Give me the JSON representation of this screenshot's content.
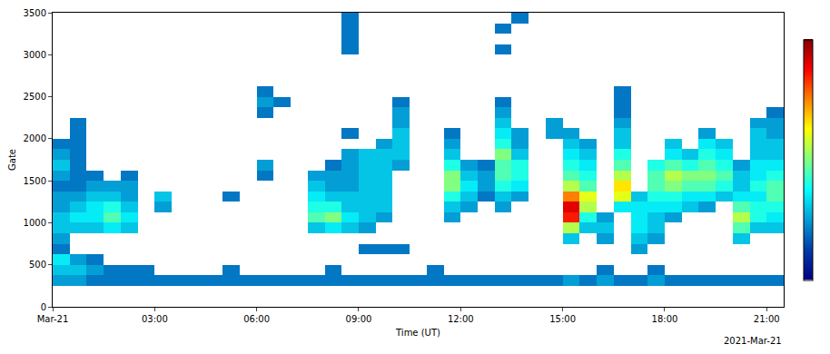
{
  "chart_data": {
    "type": "heatmap",
    "x_label": "Time (UT)",
    "y_label": "Gate",
    "annotations": [
      {
        "text": "2021-Mar-21"
      }
    ],
    "grid": false,
    "xlim": [
      0,
      21.5
    ],
    "xticks": [
      {
        "value": 0,
        "label": "Mar-21"
      },
      {
        "value": 3,
        "label": "03:00"
      },
      {
        "value": 6,
        "label": "06:00"
      },
      {
        "value": 9,
        "label": "09:00"
      },
      {
        "value": 12,
        "label": "12:00"
      },
      {
        "value": 15,
        "label": "15:00"
      },
      {
        "value": 18,
        "label": "18:00"
      },
      {
        "value": 21,
        "label": "21:00"
      }
    ],
    "ylim": [
      0,
      3500
    ],
    "yticks": [
      0,
      500,
      1000,
      1500,
      2000,
      2500,
      3000,
      3500
    ],
    "zlim": [
      0,
      100
    ],
    "x": [
      0,
      0.5,
      1,
      1.5,
      2,
      2.5,
      3,
      3.5,
      4,
      4.5,
      5,
      5.5,
      6,
      6.5,
      7,
      7.5,
      8,
      8.5,
      9,
      9.5,
      10,
      10.5,
      11,
      11.5,
      12,
      12.5,
      13,
      13.5,
      14,
      14.5,
      15,
      15.5,
      16,
      16.5,
      17,
      17.5,
      18,
      18.5,
      19,
      19.5,
      20,
      20.5,
      21,
      21.5
    ],
    "y": [
      0,
      125,
      250,
      375,
      500,
      625,
      750,
      875,
      1000,
      1125,
      1250,
      1375,
      1500,
      1625,
      1750,
      1875,
      2000,
      2125,
      2250,
      2375,
      2500,
      2625,
      2750,
      2875,
      3000,
      3125,
      3250,
      3375,
      3500
    ],
    "values": [
      [
        null,
        null,
        null,
        null,
        null,
        null,
        null,
        null,
        null,
        null,
        null,
        null,
        null,
        null,
        null,
        null,
        null,
        null,
        null,
        null,
        null,
        null,
        null,
        null,
        null,
        null,
        null,
        null,
        null,
        null,
        null,
        null,
        null,
        null,
        null,
        null,
        null,
        null,
        null,
        null,
        null,
        null,
        null
      ],
      [
        null,
        null,
        null,
        null,
        null,
        null,
        null,
        null,
        null,
        null,
        null,
        null,
        null,
        null,
        null,
        null,
        null,
        null,
        null,
        null,
        null,
        null,
        null,
        null,
        null,
        null,
        null,
        null,
        null,
        null,
        null,
        null,
        null,
        null,
        null,
        null,
        null,
        null,
        null,
        null,
        null,
        null,
        null
      ],
      [
        25,
        25,
        20,
        20,
        20,
        20,
        20,
        20,
        20,
        20,
        20,
        20,
        20,
        20,
        20,
        20,
        20,
        20,
        20,
        20,
        20,
        20,
        20,
        20,
        20,
        20,
        20,
        20,
        20,
        20,
        25,
        20,
        25,
        20,
        20,
        25,
        20,
        20,
        20,
        20,
        20,
        20,
        20
      ],
      [
        30,
        30,
        25,
        20,
        20,
        20,
        null,
        null,
        null,
        null,
        20,
        null,
        null,
        null,
        null,
        null,
        20,
        null,
        null,
        null,
        null,
        null,
        20,
        null,
        null,
        null,
        null,
        null,
        null,
        null,
        null,
        null,
        20,
        null,
        null,
        20,
        null,
        null,
        null,
        null,
        null,
        null,
        null
      ],
      [
        35,
        25,
        20,
        null,
        null,
        null,
        null,
        null,
        null,
        null,
        null,
        null,
        null,
        null,
        null,
        null,
        null,
        null,
        null,
        null,
        null,
        null,
        null,
        null,
        null,
        null,
        null,
        null,
        null,
        null,
        null,
        null,
        null,
        null,
        null,
        null,
        null,
        null,
        null,
        null,
        null,
        null,
        null
      ],
      [
        20,
        null,
        null,
        null,
        null,
        null,
        null,
        null,
        null,
        null,
        null,
        null,
        null,
        null,
        null,
        null,
        null,
        null,
        20,
        20,
        20,
        null,
        null,
        null,
        null,
        null,
        null,
        null,
        null,
        null,
        null,
        null,
        null,
        null,
        25,
        null,
        null,
        null,
        null,
        null,
        null,
        null,
        null
      ],
      [
        25,
        null,
        null,
        null,
        null,
        null,
        null,
        null,
        null,
        null,
        null,
        null,
        null,
        null,
        null,
        null,
        null,
        null,
        null,
        null,
        null,
        null,
        null,
        null,
        null,
        null,
        null,
        null,
        null,
        null,
        30,
        null,
        25,
        null,
        30,
        25,
        null,
        null,
        null,
        null,
        30,
        null,
        null
      ],
      [
        30,
        30,
        30,
        35,
        30,
        null,
        null,
        null,
        null,
        null,
        null,
        null,
        null,
        null,
        null,
        30,
        35,
        30,
        25,
        null,
        null,
        null,
        null,
        null,
        null,
        null,
        null,
        null,
        null,
        null,
        55,
        30,
        30,
        null,
        35,
        30,
        null,
        null,
        null,
        null,
        45,
        30,
        30
      ],
      [
        30,
        35,
        35,
        45,
        35,
        null,
        null,
        null,
        null,
        null,
        null,
        null,
        null,
        null,
        null,
        45,
        50,
        35,
        30,
        25,
        null,
        null,
        null,
        25,
        null,
        null,
        null,
        null,
        null,
        null,
        85,
        40,
        25,
        null,
        35,
        30,
        25,
        null,
        null,
        null,
        55,
        40,
        35
      ],
      [
        25,
        30,
        35,
        40,
        30,
        null,
        25,
        null,
        null,
        null,
        null,
        null,
        null,
        null,
        null,
        40,
        40,
        30,
        30,
        30,
        null,
        null,
        null,
        30,
        25,
        null,
        25,
        null,
        null,
        null,
        90,
        55,
        null,
        35,
        35,
        35,
        35,
        30,
        25,
        null,
        45,
        40,
        40
      ],
      [
        25,
        25,
        30,
        30,
        25,
        null,
        30,
        null,
        null,
        null,
        20,
        null,
        null,
        null,
        null,
        35,
        30,
        30,
        30,
        30,
        null,
        null,
        null,
        40,
        30,
        20,
        30,
        25,
        null,
        null,
        75,
        60,
        null,
        60,
        30,
        40,
        40,
        35,
        35,
        30,
        35,
        35,
        45
      ],
      [
        20,
        20,
        25,
        25,
        25,
        null,
        null,
        null,
        null,
        null,
        null,
        null,
        null,
        null,
        null,
        30,
        25,
        25,
        30,
        30,
        null,
        null,
        null,
        50,
        35,
        25,
        40,
        35,
        null,
        null,
        55,
        45,
        null,
        65,
        null,
        45,
        50,
        45,
        45,
        40,
        30,
        40,
        45
      ],
      [
        25,
        20,
        20,
        null,
        20,
        null,
        null,
        null,
        null,
        null,
        null,
        null,
        20,
        null,
        null,
        25,
        25,
        25,
        30,
        30,
        null,
        null,
        null,
        50,
        30,
        25,
        45,
        40,
        null,
        null,
        45,
        40,
        null,
        55,
        null,
        45,
        55,
        50,
        50,
        45,
        30,
        35,
        40
      ],
      [
        30,
        20,
        null,
        null,
        null,
        null,
        null,
        null,
        null,
        null,
        null,
        null,
        25,
        null,
        null,
        null,
        20,
        25,
        30,
        30,
        25,
        null,
        null,
        40,
        25,
        20,
        45,
        40,
        null,
        null,
        40,
        35,
        null,
        45,
        null,
        40,
        45,
        40,
        45,
        40,
        25,
        35,
        35
      ],
      [
        25,
        20,
        null,
        null,
        null,
        null,
        null,
        null,
        null,
        null,
        null,
        null,
        null,
        null,
        null,
        null,
        null,
        25,
        30,
        30,
        30,
        null,
        null,
        30,
        null,
        null,
        50,
        30,
        null,
        null,
        35,
        30,
        null,
        40,
        null,
        null,
        35,
        30,
        40,
        35,
        null,
        30,
        30
      ],
      [
        20,
        20,
        null,
        null,
        null,
        null,
        null,
        null,
        null,
        null,
        null,
        null,
        null,
        null,
        null,
        null,
        null,
        null,
        null,
        25,
        30,
        null,
        null,
        25,
        null,
        null,
        40,
        25,
        null,
        null,
        30,
        25,
        null,
        30,
        null,
        null,
        30,
        null,
        35,
        30,
        null,
        30,
        30
      ],
      [
        null,
        20,
        null,
        null,
        null,
        null,
        null,
        null,
        null,
        null,
        null,
        null,
        null,
        null,
        null,
        null,
        null,
        20,
        null,
        null,
        30,
        null,
        null,
        20,
        null,
        null,
        35,
        25,
        null,
        25,
        25,
        null,
        null,
        30,
        null,
        null,
        null,
        null,
        25,
        null,
        null,
        30,
        25
      ],
      [
        null,
        20,
        null,
        null,
        null,
        null,
        null,
        null,
        null,
        null,
        null,
        null,
        null,
        null,
        null,
        null,
        null,
        null,
        null,
        null,
        25,
        null,
        null,
        null,
        null,
        null,
        30,
        null,
        null,
        25,
        null,
        null,
        null,
        25,
        null,
        null,
        null,
        null,
        null,
        null,
        null,
        25,
        25
      ],
      [
        null,
        null,
        null,
        null,
        null,
        null,
        null,
        null,
        null,
        null,
        null,
        null,
        20,
        null,
        null,
        null,
        null,
        null,
        null,
        null,
        25,
        null,
        null,
        null,
        null,
        null,
        25,
        null,
        null,
        null,
        null,
        null,
        null,
        20,
        null,
        null,
        null,
        null,
        null,
        null,
        null,
        null,
        20
      ],
      [
        null,
        null,
        null,
        null,
        null,
        null,
        null,
        null,
        null,
        null,
        null,
        null,
        25,
        20,
        null,
        null,
        null,
        null,
        null,
        null,
        20,
        null,
        null,
        null,
        null,
        null,
        20,
        null,
        null,
        null,
        null,
        null,
        null,
        20,
        null,
        null,
        null,
        null,
        null,
        null,
        null,
        null,
        null
      ],
      [
        null,
        null,
        null,
        null,
        null,
        null,
        null,
        null,
        null,
        null,
        null,
        null,
        20,
        null,
        null,
        null,
        null,
        null,
        null,
        null,
        null,
        null,
        null,
        null,
        null,
        null,
        null,
        null,
        null,
        null,
        null,
        null,
        null,
        20,
        null,
        null,
        null,
        null,
        null,
        null,
        null,
        null,
        null
      ],
      [
        null,
        null,
        null,
        null,
        null,
        null,
        null,
        null,
        null,
        null,
        null,
        null,
        null,
        null,
        null,
        null,
        null,
        null,
        null,
        null,
        null,
        null,
        null,
        null,
        null,
        null,
        null,
        null,
        null,
        null,
        null,
        null,
        null,
        null,
        null,
        null,
        null,
        null,
        null,
        null,
        null,
        null,
        null
      ],
      [
        null,
        null,
        null,
        null,
        null,
        null,
        null,
        null,
        null,
        null,
        null,
        null,
        null,
        null,
        null,
        null,
        null,
        null,
        null,
        null,
        null,
        null,
        null,
        null,
        null,
        null,
        null,
        null,
        null,
        null,
        null,
        null,
        null,
        null,
        null,
        null,
        null,
        null,
        null,
        null,
        null,
        null,
        null
      ],
      [
        null,
        null,
        null,
        null,
        null,
        null,
        null,
        null,
        null,
        null,
        null,
        null,
        null,
        null,
        null,
        null,
        null,
        null,
        null,
        null,
        null,
        null,
        null,
        null,
        null,
        null,
        null,
        null,
        null,
        null,
        null,
        null,
        null,
        null,
        null,
        null,
        null,
        null,
        null,
        null,
        null,
        null,
        null
      ],
      [
        null,
        null,
        null,
        null,
        null,
        null,
        null,
        null,
        null,
        null,
        null,
        null,
        null,
        null,
        null,
        null,
        null,
        20,
        null,
        null,
        null,
        null,
        null,
        null,
        null,
        null,
        20,
        null,
        null,
        null,
        null,
        null,
        null,
        null,
        null,
        null,
        null,
        null,
        null,
        null,
        null,
        null,
        null
      ],
      [
        null,
        null,
        null,
        null,
        null,
        null,
        null,
        null,
        null,
        null,
        null,
        null,
        null,
        null,
        null,
        null,
        null,
        20,
        null,
        null,
        null,
        null,
        null,
        null,
        null,
        null,
        null,
        null,
        null,
        null,
        null,
        null,
        null,
        null,
        null,
        null,
        null,
        null,
        null,
        null,
        null,
        null,
        null
      ],
      [
        null,
        null,
        null,
        null,
        null,
        null,
        null,
        null,
        null,
        null,
        null,
        null,
        null,
        null,
        null,
        null,
        null,
        20,
        null,
        null,
        null,
        null,
        null,
        null,
        null,
        null,
        20,
        null,
        null,
        null,
        null,
        null,
        null,
        null,
        null,
        null,
        null,
        null,
        null,
        null,
        null,
        null,
        null
      ],
      [
        null,
        null,
        null,
        null,
        null,
        null,
        null,
        null,
        null,
        null,
        null,
        null,
        null,
        null,
        null,
        null,
        null,
        20,
        null,
        null,
        null,
        null,
        null,
        null,
        null,
        null,
        null,
        20,
        null,
        null,
        null,
        null,
        null,
        null,
        null,
        null,
        null,
        null,
        null,
        null,
        null,
        null,
        null
      ]
    ]
  }
}
